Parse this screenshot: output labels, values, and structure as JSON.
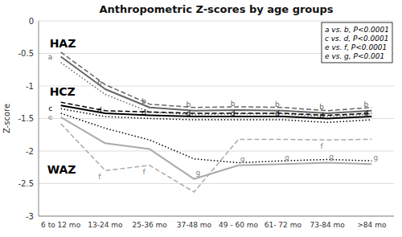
{
  "chart_data": {
    "type": "line",
    "title": "Anthropometric Z-scores by age groups",
    "y_label": "Z-score",
    "categories": [
      "6 to 12 mo",
      "13-24 mo",
      "25-36 mo",
      "37-48 mo",
      "49 - 60 mo",
      "61- 72 mo",
      "73-84 mo",
      ">84 mo"
    ],
    "ylim": [
      -3,
      0
    ],
    "yticks": [
      0,
      -0.5,
      -1,
      -1.5,
      -2,
      -2.5,
      -3
    ],
    "grid": true,
    "series": [
      {
        "name": "HAZ",
        "color": "#666666",
        "line_style": "solid",
        "values": [
          -0.55,
          -1.05,
          -1.33,
          -1.38,
          -1.37,
          -1.38,
          -1.42,
          -1.38
        ],
        "labels": [
          "a",
          "b",
          "b",
          "b",
          "b",
          "b",
          "b",
          "b"
        ]
      },
      {
        "color": "#666666",
        "line_style": "dashed",
        "values": [
          -0.48,
          -0.98,
          -1.28,
          -1.33,
          -1.32,
          -1.33,
          -1.38,
          -1.33
        ]
      },
      {
        "color": "#666666",
        "line_style": "dotted",
        "values": [
          -0.64,
          -1.13,
          -1.4,
          -1.44,
          -1.43,
          -1.43,
          -1.47,
          -1.43
        ]
      },
      {
        "name": "HCZ",
        "color": "#000000",
        "line_style": "solid",
        "values": [
          -1.3,
          -1.42,
          -1.45,
          -1.47,
          -1.47,
          -1.47,
          -1.5,
          -1.47
        ]
      },
      {
        "color": "#000000",
        "line_style": "dashed",
        "values": [
          -1.25,
          -1.38,
          -1.4,
          -1.42,
          -1.42,
          -1.42,
          -1.45,
          -1.42
        ]
      },
      {
        "color": "#000000",
        "line_style": "dotted",
        "values": [
          -1.35,
          -1.47,
          -1.5,
          -1.52,
          -1.52,
          -1.52,
          -1.56,
          -1.52
        ],
        "labels": [
          "c",
          "d",
          "d",
          "d",
          "d",
          "d",
          "d",
          "d"
        ]
      },
      {
        "name": "WAZ",
        "color": "#aaaaaa",
        "line_style": "solid",
        "values": [
          -1.48,
          -1.88,
          -1.97,
          -2.43,
          -2.22,
          -2.2,
          -2.18,
          -2.2
        ],
        "labels": [
          "e",
          null,
          null,
          "g",
          "g",
          "g",
          "g",
          "g"
        ]
      },
      {
        "color": "#aaaaaa",
        "line_style": "dashed",
        "values": [
          -1.58,
          -2.3,
          -2.22,
          -2.63,
          -1.82,
          -1.82,
          -1.83,
          -1.82
        ],
        "labels": [
          null,
          "f",
          "f",
          null,
          null,
          null,
          "f",
          null
        ]
      },
      {
        "color": "#000000",
        "line_style": "dotted",
        "values": [
          -1.42,
          -1.65,
          -1.83,
          -2.12,
          -2.18,
          -2.15,
          -2.13,
          -2.15
        ]
      }
    ],
    "annotation": [
      "a vs. b, P<0.0001",
      "c vs. d, P<0.0001",
      "e vs. f, P<0.0001",
      "e vs. g, P<0.001"
    ]
  }
}
